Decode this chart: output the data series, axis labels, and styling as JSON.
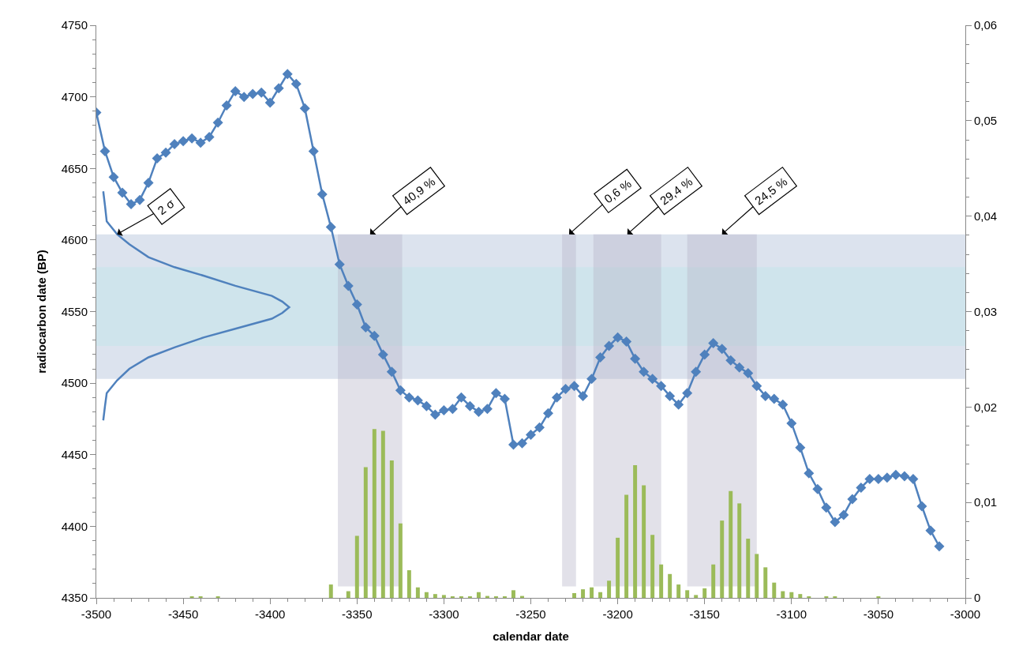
{
  "chart_data": {
    "type": "line",
    "xlabel": "calendar date",
    "ylabel": "radiocarbon date (BP)",
    "xlim": [
      -3500,
      -3000
    ],
    "xticks": [
      -3500,
      -3450,
      -3400,
      -3350,
      -3300,
      -3250,
      -3200,
      -3150,
      -3100,
      -3050,
      -3000
    ],
    "ylim": [
      4350,
      4750
    ],
    "yticks": [
      4350,
      4400,
      4450,
      4500,
      4550,
      4600,
      4650,
      4700,
      4750
    ],
    "y2lim": [
      0,
      0.06
    ],
    "y2ticks": [
      0,
      {
        "value": 0.01,
        "label": "0,01"
      },
      {
        "value": 0.02,
        "label": "0,02"
      },
      {
        "value": 0.03,
        "label": "0,03"
      },
      {
        "value": 0.04,
        "label": "0,04"
      },
      {
        "value": 0.05,
        "label": "0,05"
      },
      {
        "value": 0.06,
        "label": "0,06"
      }
    ],
    "series": [
      {
        "type": "bar",
        "axis": "y2",
        "color": "#9bbb59",
        "x": [
          -3445,
          -3440,
          -3430,
          -3365,
          -3355,
          -3350,
          -3345,
          -3340,
          -3335,
          -3330,
          -3325,
          -3320,
          -3315,
          -3310,
          -3305,
          -3300,
          -3295,
          -3290,
          -3285,
          -3280,
          -3275,
          -3270,
          -3265,
          -3260,
          -3255,
          -3225,
          -3220,
          -3215,
          -3210,
          -3205,
          -3200,
          -3195,
          -3190,
          -3185,
          -3180,
          -3175,
          -3170,
          -3165,
          -3160,
          -3155,
          -3150,
          -3145,
          -3140,
          -3135,
          -3130,
          -3125,
          -3120,
          -3115,
          -3110,
          -3105,
          -3100,
          -3095,
          -3090,
          -3080,
          -3075,
          -3050
        ],
        "values": [
          0.0001,
          0.0001,
          0.0001,
          0.0014,
          0.0007,
          0.0065,
          0.0137,
          0.0177,
          0.0175,
          0.0144,
          0.0078,
          0.0029,
          0.0011,
          0.0006,
          0.0004,
          0.0003,
          0.0001,
          0.0001,
          0.0001,
          0.0006,
          0.0002,
          0.0001,
          0.0001,
          0.0008,
          0.0002,
          0.0005,
          0.0009,
          0.0011,
          0.0006,
          0.0018,
          0.0063,
          0.0108,
          0.0139,
          0.0118,
          0.0066,
          0.0035,
          0.0025,
          0.0014,
          0.0008,
          0.0003,
          0.001,
          0.0035,
          0.0081,
          0.0112,
          0.0099,
          0.0062,
          0.0046,
          0.0032,
          0.0016,
          0.0007,
          0.0006,
          0.0004,
          0.0001,
          0.0001,
          0.0001,
          0.0001
        ]
      },
      {
        "marker": "diamond",
        "color": "#4f81bd",
        "x": [
          -3500,
          -3495,
          -3490,
          -3485,
          -3480,
          -3475,
          -3470,
          -3465,
          -3460,
          -3455,
          -3450,
          -3445,
          -3440,
          -3435,
          -3430,
          -3425,
          -3420,
          -3415,
          -3410,
          -3405,
          -3400,
          -3395,
          -3390,
          -3385,
          -3380,
          -3375,
          -3370,
          -3365,
          -3360,
          -3355,
          -3350,
          -3345,
          -3340,
          -3335,
          -3330,
          -3325,
          -3320,
          -3315,
          -3310,
          -3305,
          -3300,
          -3295,
          -3290,
          -3285,
          -3280,
          -3275,
          -3270,
          -3265,
          -3260,
          -3255,
          -3250,
          -3245,
          -3240,
          -3235,
          -3230,
          -3225,
          -3220,
          -3215,
          -3210,
          -3205,
          -3200,
          -3195,
          -3190,
          -3185,
          -3180,
          -3175,
          -3170,
          -3165,
          -3160,
          -3155,
          -3150,
          -3145,
          -3140,
          -3135,
          -3130,
          -3125,
          -3120,
          -3115,
          -3110,
          -3105,
          -3100,
          -3095,
          -3090,
          -3085,
          -3080,
          -3075,
          -3070,
          -3065,
          -3060,
          -3055,
          -3050,
          -3045,
          -3040,
          -3035,
          -3030,
          -3025,
          -3020,
          -3015
        ],
        "values": [
          4689,
          4662,
          4644,
          4633,
          4625,
          4628,
          4640,
          4657,
          4661,
          4667,
          4669,
          4671,
          4668,
          4672,
          4682,
          4694,
          4704,
          4700,
          4702,
          4703,
          4696,
          4706,
          4716,
          4709,
          4692,
          4662,
          4632,
          4609,
          4583,
          4568,
          4555,
          4539,
          4533,
          4520,
          4508,
          4495,
          4490,
          4488,
          4484,
          4478,
          4481,
          4482,
          4490,
          4484,
          4480,
          4482,
          4493,
          4489,
          4457,
          4458,
          4464,
          4469,
          4479,
          4490,
          4496,
          4498,
          4491,
          4503,
          4518,
          4526,
          4532,
          4529,
          4517,
          4508,
          4503,
          4498,
          4491,
          4485,
          4493,
          4508,
          4520,
          4528,
          4524,
          4516,
          4511,
          4507,
          4498,
          4491,
          4489,
          4485,
          4472,
          4455,
          4437,
          4426,
          4413,
          4403,
          4408,
          4419,
          4427,
          4433,
          4433,
          4434,
          4436,
          4435,
          4433,
          4414,
          4397,
          4386
        ]
      },
      {
        "marker": "none",
        "color": "#4f81bd",
        "x": [
          -3496,
          -3495,
          -3494,
          -3488,
          -3481,
          -3470,
          -3455,
          -3438,
          -3420,
          -3399,
          -3393,
          -3389,
          -3393,
          -3399,
          -3420,
          -3438,
          -3455,
          -3470,
          -3481,
          -3488,
          -3494,
          -3495,
          -3496
        ],
        "values": [
          4634,
          4624,
          4613,
          4604,
          4597,
          4588,
          4581,
          4575,
          4568,
          4561,
          4557,
          4553,
          4549,
          4545,
          4538,
          4532,
          4525,
          4518,
          4510,
          4502,
          4493,
          4484,
          4474
        ]
      }
    ],
    "bands": [
      {
        "axis": "y",
        "from": 4503,
        "to": 4604,
        "color": "#dce3ee"
      },
      {
        "axis": "y",
        "from": 4526,
        "to": 4581,
        "color": "#cfe4ec"
      },
      {
        "axis": "x",
        "from": -3361,
        "to": -3324,
        "color": "#b7b4c8",
        "label": "40,9 %"
      },
      {
        "axis": "x",
        "from": -3232,
        "to": -3224,
        "color": "#b7b4c8",
        "label": "0,6 %"
      },
      {
        "axis": "x",
        "from": -3214,
        "to": -3175,
        "color": "#b7b4c8",
        "label": "29,4 %"
      },
      {
        "axis": "x",
        "from": -3160,
        "to": -3120,
        "color": "#b7b4c8",
        "label": "24,5 %"
      }
    ],
    "annotations": [
      {
        "text": "2 σ",
        "x": -3488,
        "y": 4604
      }
    ]
  }
}
